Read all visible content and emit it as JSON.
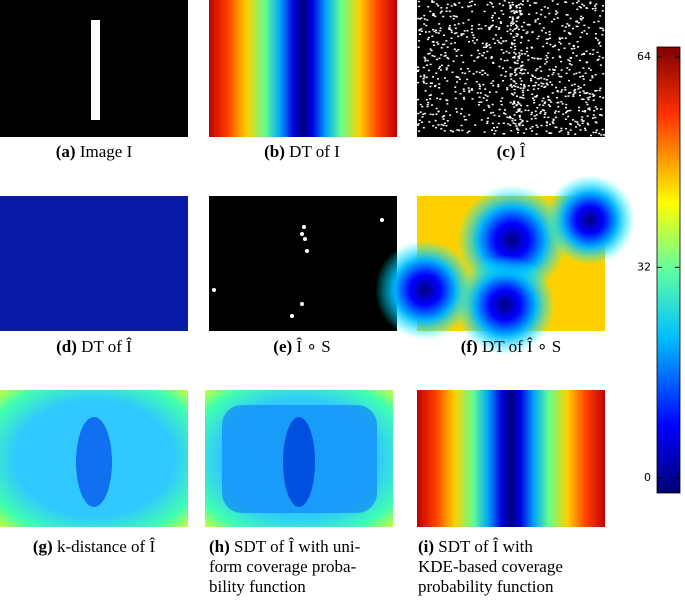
{
  "panels": [
    {
      "label": "(a)",
      "lines": [
        "Image I"
      ]
    },
    {
      "label": "(b)",
      "lines": [
        "DT of I"
      ]
    },
    {
      "label": "(c)",
      "lines": [
        "Î"
      ]
    },
    {
      "label": "(d)",
      "lines": [
        "DT of Î"
      ]
    },
    {
      "label": "(e)",
      "lines": [
        "Î ∘ S"
      ]
    },
    {
      "label": "(f)",
      "lines": [
        "DT of Î ∘ S"
      ]
    },
    {
      "label": "(g)",
      "lines": [
        "k-distance of Î"
      ]
    },
    {
      "label": "(h)",
      "lines": [
        "SDT of Î with uni-",
        "form coverage proba-",
        "bility function"
      ]
    },
    {
      "label": "(i)",
      "lines": [
        "SDT  of  Î  with",
        "KDE-based  coverage",
        "probability function"
      ]
    }
  ],
  "colorbar": {
    "lim": [
      -2.3,
      65.5
    ],
    "ticks": [
      0,
      32,
      64
    ]
  }
}
